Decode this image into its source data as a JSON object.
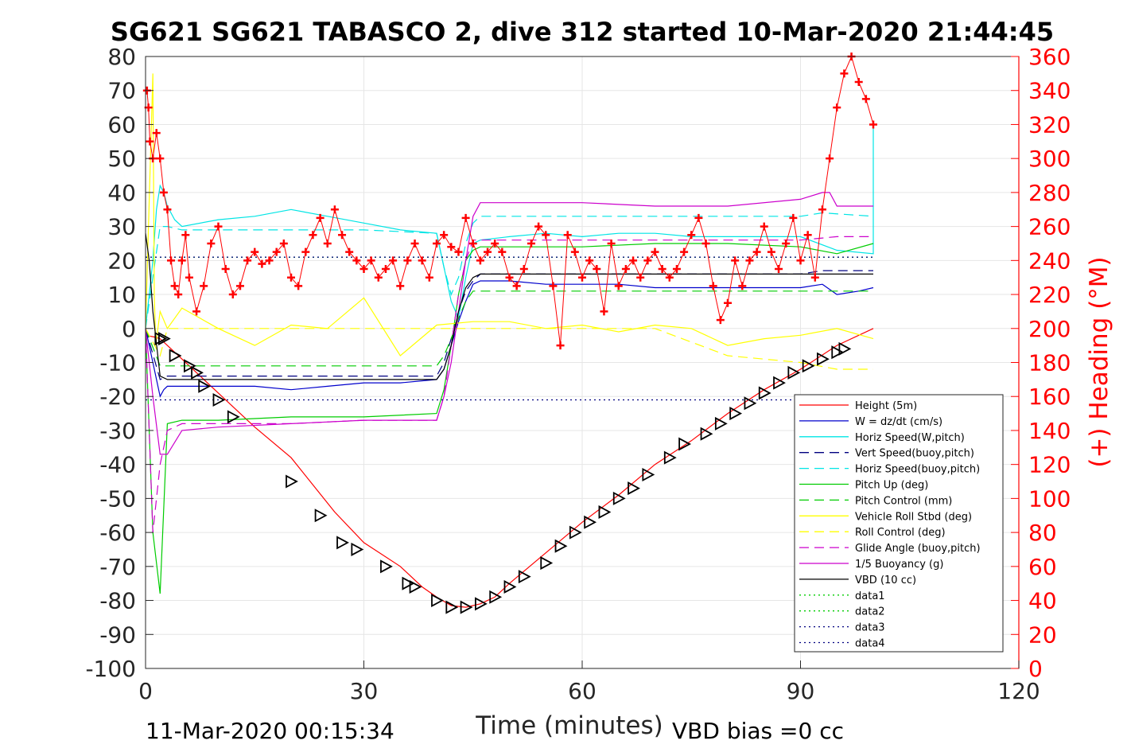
{
  "chart_data": {
    "type": "line",
    "title": "SG621 SG621 TABASCO 2, dive 312 started 10-Mar-2020 21:44:45",
    "xlabel": "Time (minutes)",
    "ylabel": "",
    "y2label": "(+) Heading (°M)",
    "xlim": [
      0,
      120
    ],
    "ylim": [
      -100,
      80
    ],
    "y2lim": [
      0,
      360
    ],
    "xticks": [
      "0",
      "30",
      "60",
      "90",
      "120"
    ],
    "yticks": [
      "80",
      "70",
      "60",
      "50",
      "40",
      "30",
      "20",
      "10",
      "0",
      "-10",
      "-20",
      "-30",
      "-40",
      "-50",
      "-60",
      "-70",
      "-80",
      "-90",
      "-100"
    ],
    "y2ticks": [
      "360",
      "340",
      "320",
      "300",
      "280",
      "260",
      "240",
      "220",
      "200",
      "180",
      "160",
      "140",
      "120",
      "100",
      "80",
      "60",
      "40",
      "20",
      "0"
    ],
    "grid": true,
    "legend_position": "lower-right",
    "footer_left": "11-Mar-2020 00:15:34",
    "footer_right": "VBD bias =0 cc",
    "series": [
      {
        "name": "Height (5m)",
        "color": "#ff0000",
        "style": "solid",
        "x": [
          0,
          1.2,
          2,
          3,
          5,
          10,
          15,
          20,
          26,
          30,
          35,
          38,
          40,
          42,
          44,
          46,
          48,
          50,
          55,
          60,
          65,
          70,
          75,
          80,
          85,
          90,
          95,
          100
        ],
        "y": [
          -2,
          -2.5,
          -3,
          -5,
          -9,
          -19,
          -29,
          -38,
          -54,
          -63,
          -70,
          -76,
          -79,
          -81.5,
          -82,
          -81,
          -79,
          -75,
          -66,
          -57,
          -49,
          -40,
          -33,
          -25,
          -18,
          -12,
          -5,
          0
        ]
      },
      {
        "name": "W = dz/dt (cm/s)",
        "color": "#0000cc",
        "style": "solid",
        "x": [
          0,
          0.5,
          1,
          2,
          2.5,
          3,
          5,
          10,
          15,
          20,
          25,
          30,
          35,
          40,
          41,
          42,
          43,
          44,
          45,
          46,
          50,
          55,
          60,
          65,
          70,
          75,
          80,
          85,
          90,
          93,
          95,
          98,
          100
        ],
        "y": [
          0,
          -5,
          -10,
          -20,
          -18,
          -17,
          -17,
          -17,
          -17,
          -18,
          -17,
          -16,
          -16,
          -15,
          -12,
          -5,
          2,
          8,
          13,
          14,
          14,
          13,
          13,
          13,
          12,
          12,
          12,
          12,
          12,
          13,
          10,
          11,
          12
        ]
      },
      {
        "name": "Horiz Speed(W,pitch)",
        "color": "#00e5e5",
        "style": "solid",
        "x": [
          0,
          1,
          1.5,
          2,
          2.5,
          3,
          4,
          5,
          10,
          15,
          20,
          25,
          30,
          35,
          40,
          41,
          42,
          43,
          44,
          45,
          46,
          50,
          55,
          60,
          65,
          70,
          75,
          80,
          85,
          90,
          95,
          100,
          100
        ],
        "y": [
          0,
          20,
          35,
          42,
          40,
          36,
          32,
          30,
          32,
          33,
          35,
          33,
          31,
          29,
          28,
          18,
          8,
          3,
          15,
          25,
          26,
          27,
          28,
          27,
          28,
          28,
          27,
          27,
          27,
          27,
          23,
          22,
          60
        ]
      },
      {
        "name": "Vert Speed(buoy,pitch)",
        "color": "#000080",
        "style": "dashed",
        "x": [
          0,
          2,
          3,
          5,
          10,
          20,
          30,
          40,
          41,
          42,
          43,
          44,
          45,
          46,
          50,
          60,
          70,
          80,
          90,
          93,
          100
        ],
        "y": [
          0,
          -15,
          -14,
          -14,
          -14,
          -14,
          -14,
          -14,
          -10,
          -3,
          5,
          11,
          14,
          16,
          16,
          16,
          16,
          16,
          16,
          17,
          17
        ]
      },
      {
        "name": "Horiz Speed(buoy,pitch)",
        "color": "#00e5e5",
        "style": "dashed",
        "x": [
          0,
          2,
          3,
          5,
          10,
          20,
          30,
          40,
          41,
          42,
          43,
          44,
          45,
          46,
          50,
          60,
          70,
          80,
          90,
          93,
          100
        ],
        "y": [
          0,
          30,
          30,
          29,
          29,
          29,
          29,
          28,
          18,
          10,
          15,
          25,
          31,
          33,
          33,
          33,
          33,
          33,
          33,
          34,
          33
        ]
      },
      {
        "name": "Pitch Up (deg)",
        "color": "#00cc00",
        "style": "solid",
        "x": [
          0,
          1,
          2,
          3,
          5,
          10,
          20,
          30,
          40,
          41,
          42,
          43,
          44,
          45,
          46,
          50,
          60,
          70,
          80,
          90,
          95,
          100
        ],
        "y": [
          0,
          -60,
          -78,
          -28,
          -27,
          -27,
          -26,
          -26,
          -25,
          -18,
          -5,
          10,
          20,
          23,
          24,
          24,
          24,
          25,
          25,
          24,
          22,
          25
        ]
      },
      {
        "name": "Pitch Control (mm)",
        "color": "#00cc00",
        "style": "dashed",
        "x": [
          0,
          2,
          3,
          40,
          41,
          42,
          43,
          44,
          45,
          100
        ],
        "y": [
          0,
          -11,
          -11,
          -11,
          -8,
          -3,
          3,
          8,
          11,
          11
        ]
      },
      {
        "name": "Vehicle Roll Stbd (deg)",
        "color": "#ffff00",
        "style": "solid",
        "x": [
          0,
          1,
          1.2,
          1.4,
          2,
          3,
          5,
          10,
          15,
          20,
          25,
          30,
          35,
          40,
          45,
          50,
          55,
          60,
          65,
          70,
          75,
          80,
          85,
          90,
          95,
          100
        ],
        "y": [
          0,
          75,
          10,
          -5,
          5,
          0,
          6,
          0,
          -5,
          1,
          0,
          9,
          -8,
          1,
          2,
          2,
          0,
          1,
          -1,
          1,
          0,
          -5,
          -3,
          -2,
          0,
          -3
        ]
      },
      {
        "name": "Roll Control (deg)",
        "color": "#ffff00",
        "style": "dashed",
        "x": [
          0,
          2,
          3,
          10,
          20,
          30,
          40,
          50,
          60,
          70,
          80,
          90,
          95,
          100
        ],
        "y": [
          0,
          -8,
          0,
          0,
          0,
          0,
          0,
          0,
          0,
          0,
          -8,
          -10,
          -12,
          -12
        ]
      },
      {
        "name": "Glide Angle (buoy,pitch)",
        "color": "#cc00cc",
        "style": "dashed",
        "x": [
          0,
          1,
          2,
          3,
          5,
          10,
          20,
          30,
          40,
          41,
          42,
          43,
          44,
          45,
          46,
          50,
          60,
          70,
          80,
          90,
          95,
          100
        ],
        "y": [
          0,
          -60,
          -40,
          -30,
          -28,
          -28,
          -28,
          -27,
          -27,
          -20,
          -5,
          10,
          20,
          26,
          26,
          26,
          26,
          26,
          26,
          26,
          27,
          27
        ]
      },
      {
        "name": "1/5 Buoyancy (g)",
        "color": "#cc00cc",
        "style": "solid",
        "x": [
          0,
          1,
          2,
          3,
          5,
          10,
          20,
          30,
          40,
          41,
          42,
          43,
          44,
          45,
          46,
          50,
          60,
          70,
          80,
          90,
          93,
          94,
          95,
          100
        ],
        "y": [
          0,
          -20,
          -37,
          -37,
          -30,
          -29,
          -28,
          -27,
          -27,
          -20,
          -10,
          5,
          20,
          33,
          37,
          37,
          37,
          36,
          36,
          38,
          40,
          40,
          36,
          36
        ]
      },
      {
        "name": "VBD (10 cc)",
        "color": "#000000",
        "style": "solid",
        "x": [
          0,
          0.5,
          1,
          2,
          3,
          5,
          10,
          20,
          30,
          40,
          41,
          42,
          43,
          44,
          45,
          46,
          50,
          60,
          70,
          80,
          90,
          100
        ],
        "y": [
          28,
          20,
          5,
          -14,
          -15,
          -15,
          -15,
          -15,
          -15,
          -15,
          -12,
          -5,
          5,
          12,
          15,
          16,
          16,
          16,
          16,
          16,
          16,
          16
        ]
      },
      {
        "name": "data1",
        "color": "#00cc00",
        "style": "dotted",
        "x": [
          0,
          100
        ],
        "y": [
          21,
          21
        ]
      },
      {
        "name": "data2",
        "color": "#00cc00",
        "style": "dotted",
        "x": [
          0,
          100
        ],
        "y": [
          21,
          21
        ]
      },
      {
        "name": "data3",
        "color": "#000080",
        "style": "dotted",
        "x": [
          0,
          100
        ],
        "y": [
          21,
          21
        ]
      },
      {
        "name": "data4",
        "color": "#000080",
        "style": "dotted",
        "x": [
          0,
          100
        ],
        "y": [
          -21,
          -21
        ]
      }
    ],
    "heading_series": {
      "marker": "+",
      "color": "#ff0000",
      "x": [
        0.2,
        0.4,
        0.6,
        1,
        1.5,
        2,
        2.5,
        3,
        3.5,
        4,
        4.5,
        5,
        5.5,
        6,
        7,
        8,
        9,
        10,
        11,
        12,
        13,
        14,
        15,
        16,
        17,
        18,
        19,
        20,
        21,
        22,
        23,
        24,
        25,
        26,
        27,
        28,
        29,
        30,
        31,
        32,
        33,
        34,
        35,
        36,
        37,
        38,
        39,
        40,
        41,
        42,
        43,
        44,
        45,
        46,
        47,
        48,
        49,
        50,
        51,
        52,
        53,
        54,
        55,
        56,
        57,
        58,
        59,
        60,
        61,
        62,
        63,
        64,
        65,
        66,
        67,
        68,
        69,
        70,
        71,
        72,
        73,
        74,
        75,
        76,
        77,
        78,
        79,
        80,
        81,
        82,
        83,
        84,
        85,
        86,
        87,
        88,
        89,
        90,
        91,
        92,
        93,
        94,
        95,
        96,
        97,
        98,
        99,
        100
      ],
      "y": [
        340,
        330,
        310,
        300,
        315,
        300,
        280,
        270,
        240,
        225,
        220,
        240,
        255,
        230,
        210,
        225,
        250,
        260,
        235,
        220,
        225,
        240,
        245,
        238,
        240,
        245,
        250,
        230,
        225,
        245,
        255,
        265,
        250,
        270,
        255,
        245,
        240,
        235,
        240,
        230,
        235,
        240,
        225,
        240,
        250,
        240,
        230,
        250,
        255,
        248,
        245,
        265,
        250,
        240,
        245,
        250,
        245,
        230,
        225,
        235,
        250,
        260,
        255,
        225,
        190,
        255,
        245,
        230,
        240,
        235,
        210,
        250,
        225,
        235,
        240,
        230,
        240,
        245,
        235,
        230,
        235,
        245,
        255,
        265,
        250,
        225,
        205,
        215,
        240,
        225,
        240,
        245,
        260,
        245,
        235,
        250,
        265,
        240,
        255,
        230,
        270,
        300,
        330,
        350,
        360,
        345,
        335,
        320
      ]
    },
    "trajectory_markers": {
      "marker": "triangle",
      "x": [
        2,
        2.5,
        4,
        6,
        7,
        8,
        10,
        12,
        20,
        24,
        27,
        29,
        33,
        36,
        37,
        40,
        42,
        44,
        46,
        48,
        50,
        52,
        55,
        57,
        59,
        61,
        63,
        65,
        67,
        69,
        72,
        74,
        77,
        79,
        81,
        83,
        85,
        87,
        89,
        91,
        93,
        95,
        96
      ],
      "y": [
        -3,
        -3,
        -8,
        -11,
        -13,
        -17,
        -21,
        -26,
        -45,
        -55,
        -63,
        -65,
        -70,
        -75,
        -76,
        -80,
        -82,
        -82,
        -81,
        -79,
        -76,
        -73,
        -69,
        -64,
        -60,
        -57,
        -54,
        -50,
        -47,
        -43,
        -38,
        -34,
        -31,
        -28,
        -25,
        -22,
        -19,
        -16,
        -13,
        -11,
        -9,
        -7,
        -6
      ]
    }
  }
}
